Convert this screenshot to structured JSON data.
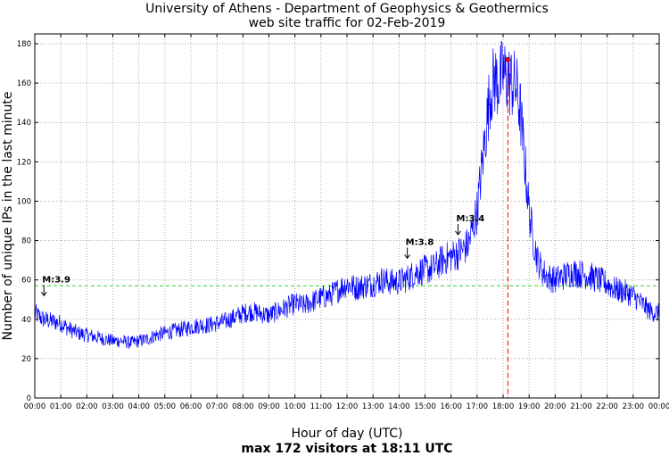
{
  "chart_data": {
    "type": "line",
    "title": "University of Athens - Department of Geophysics & Geothermics",
    "subtitle": "web site traffic for 02-Feb-2019",
    "xlabel": "Hour of day (UTC)",
    "ylabel": "Number of unique IPs in the last minute",
    "footer": "max 172 visitors at 18:11 UTC",
    "xlim": [
      0,
      1440
    ],
    "ylim": [
      0,
      185
    ],
    "x_ticks": [
      "00:00",
      "01:00",
      "02:00",
      "03:00",
      "04:00",
      "05:00",
      "06:00",
      "07:00",
      "08:00",
      "09:00",
      "10:00",
      "11:00",
      "12:00",
      "13:00",
      "14:00",
      "15:00",
      "16:00",
      "17:00",
      "18:00",
      "19:00",
      "20:00",
      "21:00",
      "22:00",
      "23:00",
      "00:00"
    ],
    "y_ticks": [
      0,
      20,
      40,
      60,
      80,
      100,
      120,
      140,
      160,
      180
    ],
    "grid": true,
    "reference_line": {
      "y": 57,
      "color": "#33cc33"
    },
    "max_marker": {
      "x": 1091,
      "y": 172,
      "color": "#ff0000"
    },
    "annotations": [
      {
        "label": "M:3.9",
        "x": 17,
        "y": 52
      },
      {
        "label": "M:3.8",
        "x": 855,
        "y": 71
      },
      {
        "label": "M:3.4",
        "x": 972,
        "y": 83
      }
    ],
    "series_color": "#0000ff",
    "series": [
      {
        "x": [
          0,
          20,
          40,
          60,
          80,
          100,
          120,
          140,
          160,
          180,
          200,
          220,
          240,
          260,
          280,
          300,
          320,
          340,
          360,
          380,
          400,
          420,
          440,
          460,
          480,
          500,
          520,
          540,
          560,
          580,
          600,
          620,
          640,
          660,
          680,
          700,
          720,
          740,
          760,
          780,
          800,
          820,
          840,
          860,
          880,
          900,
          920,
          940,
          960,
          980,
          1000,
          1020,
          1030,
          1040,
          1050,
          1060,
          1070,
          1080,
          1090,
          1100,
          1110,
          1120,
          1130,
          1140,
          1150,
          1160,
          1170,
          1180,
          1190,
          1200,
          1220,
          1240,
          1260,
          1280,
          1300,
          1320,
          1340,
          1360,
          1380,
          1400,
          1420,
          1440
        ],
        "y": [
          43,
          40,
          39,
          38,
          35,
          33,
          32,
          31,
          30,
          29,
          29,
          28,
          29,
          30,
          32,
          33,
          34,
          35,
          36,
          37,
          37,
          38,
          39,
          41,
          43,
          44,
          43,
          42,
          44,
          46,
          48,
          47,
          49,
          51,
          52,
          55,
          58,
          56,
          57,
          58,
          60,
          59,
          59,
          61,
          64,
          65,
          66,
          70,
          72,
          74,
          78,
          95,
          115,
          135,
          155,
          162,
          160,
          165,
          162,
          160,
          158,
          145,
          120,
          95,
          80,
          70,
          65,
          62,
          61,
          60,
          62,
          64,
          63,
          62,
          60,
          58,
          55,
          54,
          52,
          48,
          44,
          43
        ]
      }
    ]
  }
}
